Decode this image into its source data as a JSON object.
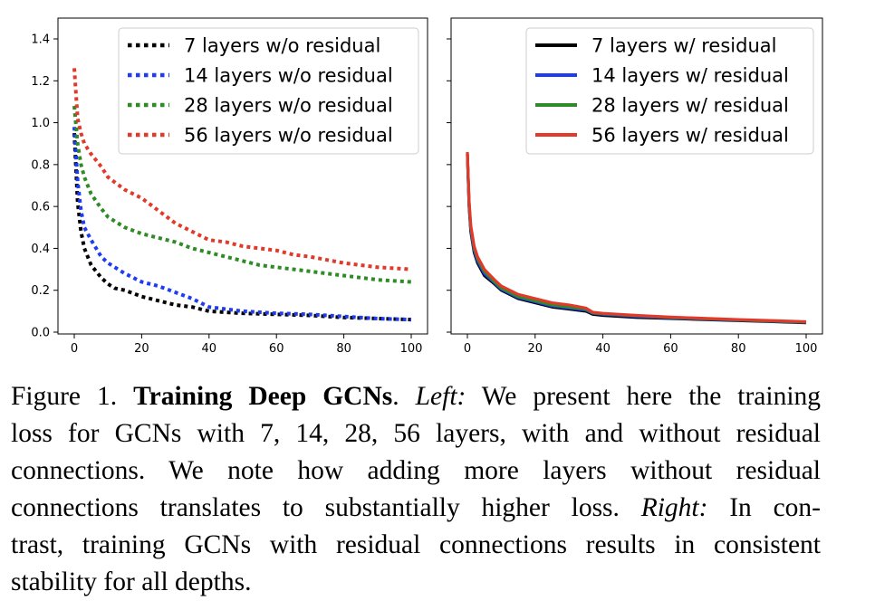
{
  "chart_data": [
    {
      "type": "line",
      "panel": "left",
      "title": "",
      "xlabel": "",
      "ylabel": "",
      "xlim": [
        0,
        100
      ],
      "ylim": [
        0.0,
        1.4
      ],
      "x_ticks": [
        0,
        20,
        40,
        60,
        80,
        100
      ],
      "y_ticks": [
        "0.0",
        "0.2",
        "0.4",
        "0.6",
        "0.8",
        "1.0",
        "1.2",
        "1.4"
      ],
      "legend_position": "top-right",
      "line_style": "dotted",
      "series": [
        {
          "name": "7 layers w/o residual",
          "color": "#000000",
          "x": [
            0,
            1,
            2,
            3,
            5,
            8,
            10,
            12,
            15,
            20,
            25,
            30,
            35,
            40,
            50,
            60,
            70,
            80,
            90,
            100
          ],
          "y": [
            0.95,
            0.62,
            0.48,
            0.4,
            0.32,
            0.26,
            0.23,
            0.21,
            0.2,
            0.17,
            0.15,
            0.13,
            0.12,
            0.1,
            0.09,
            0.085,
            0.08,
            0.07,
            0.065,
            0.06
          ]
        },
        {
          "name": "14 layers w/o residual",
          "color": "#1f3cf0",
          "x": [
            0,
            1,
            2,
            3,
            5,
            8,
            10,
            15,
            20,
            25,
            30,
            35,
            40,
            50,
            60,
            70,
            80,
            90,
            100
          ],
          "y": [
            0.98,
            0.72,
            0.58,
            0.5,
            0.44,
            0.36,
            0.33,
            0.28,
            0.24,
            0.22,
            0.19,
            0.16,
            0.12,
            0.1,
            0.09,
            0.085,
            0.075,
            0.065,
            0.06
          ]
        },
        {
          "name": "28 layers w/o residual",
          "color": "#2e8b25",
          "x": [
            0,
            1,
            2,
            3,
            5,
            8,
            10,
            15,
            20,
            25,
            30,
            35,
            40,
            45,
            50,
            55,
            60,
            70,
            80,
            90,
            100
          ],
          "y": [
            1.08,
            0.9,
            0.8,
            0.74,
            0.66,
            0.59,
            0.55,
            0.5,
            0.47,
            0.45,
            0.43,
            0.4,
            0.38,
            0.36,
            0.34,
            0.32,
            0.31,
            0.29,
            0.27,
            0.25,
            0.24
          ]
        },
        {
          "name": "56 layers w/o residual",
          "color": "#e23a2a",
          "x": [
            0,
            1,
            2,
            3,
            5,
            8,
            10,
            15,
            20,
            25,
            30,
            35,
            40,
            45,
            50,
            55,
            60,
            65,
            70,
            80,
            90,
            100
          ],
          "y": [
            1.26,
            1.02,
            0.95,
            0.9,
            0.85,
            0.79,
            0.74,
            0.68,
            0.64,
            0.58,
            0.52,
            0.48,
            0.44,
            0.43,
            0.41,
            0.4,
            0.39,
            0.37,
            0.36,
            0.33,
            0.31,
            0.3
          ]
        }
      ],
      "legend": [
        "7 layers w/o residual",
        "14 layers w/o residual",
        "28 layers w/o residual",
        "56 layers w/o residual"
      ]
    },
    {
      "type": "line",
      "panel": "right",
      "title": "",
      "xlabel": "",
      "ylabel": "",
      "xlim": [
        0,
        100
      ],
      "ylim": [
        0.0,
        1.4
      ],
      "x_ticks": [
        0,
        20,
        40,
        60,
        80,
        100
      ],
      "y_ticks": [],
      "legend_position": "top-right",
      "line_style": "solid",
      "series": [
        {
          "name": "7 layers w/ residual",
          "color": "#000000",
          "x": [
            0,
            0.5,
            1,
            2,
            3,
            5,
            8,
            10,
            15,
            20,
            25,
            30,
            35,
            37,
            40,
            50,
            60,
            70,
            80,
            90,
            100
          ],
          "y": [
            0.85,
            0.6,
            0.48,
            0.38,
            0.33,
            0.27,
            0.23,
            0.2,
            0.16,
            0.14,
            0.12,
            0.11,
            0.1,
            0.085,
            0.08,
            0.07,
            0.065,
            0.06,
            0.055,
            0.05,
            0.045
          ]
        },
        {
          "name": "14 layers w/ residual",
          "color": "#1f3cf0",
          "x": [
            0,
            0.5,
            1,
            2,
            3,
            5,
            8,
            10,
            15,
            20,
            25,
            30,
            35,
            37,
            40,
            50,
            60,
            70,
            80,
            90,
            100
          ],
          "y": [
            0.85,
            0.61,
            0.49,
            0.39,
            0.34,
            0.28,
            0.235,
            0.205,
            0.165,
            0.145,
            0.125,
            0.115,
            0.105,
            0.09,
            0.085,
            0.075,
            0.068,
            0.062,
            0.057,
            0.052,
            0.047
          ]
        },
        {
          "name": "28 layers w/ residual",
          "color": "#2e8b25",
          "x": [
            0,
            0.5,
            1,
            2,
            3,
            5,
            8,
            10,
            15,
            20,
            25,
            30,
            35,
            37,
            40,
            50,
            60,
            70,
            80,
            90,
            100
          ],
          "y": [
            0.85,
            0.62,
            0.5,
            0.4,
            0.35,
            0.29,
            0.24,
            0.21,
            0.17,
            0.15,
            0.13,
            0.12,
            0.11,
            0.092,
            0.088,
            0.078,
            0.07,
            0.064,
            0.058,
            0.053,
            0.048
          ]
        },
        {
          "name": "56 layers w/ residual",
          "color": "#e23a2a",
          "x": [
            0,
            0.5,
            1,
            2,
            3,
            5,
            8,
            10,
            15,
            20,
            25,
            30,
            35,
            37,
            40,
            50,
            60,
            70,
            80,
            90,
            100
          ],
          "y": [
            0.86,
            0.63,
            0.51,
            0.41,
            0.36,
            0.3,
            0.25,
            0.22,
            0.18,
            0.16,
            0.14,
            0.13,
            0.115,
            0.095,
            0.09,
            0.08,
            0.072,
            0.066,
            0.06,
            0.055,
            0.05
          ]
        }
      ],
      "legend": [
        "7 layers w/ residual",
        "14 layers w/ residual",
        "28 layers w/ residual",
        "56 layers w/ residual"
      ]
    }
  ],
  "caption": {
    "figure_label": "Figure 1.",
    "bold_title": "Training Deep GCNs",
    "line1_a": ". ",
    "left_label": "Left:",
    "line1_b": " We present here the training",
    "line2": "loss for GCNs with 7, 14, 28, 56 layers, with and without residual",
    "line3": "connections.  We note how adding more layers without residual",
    "line4_a": "connections translates to substantially higher loss. ",
    "right_label": "Right:",
    "line4_b": " In con-",
    "line5": "trast, training GCNs with residual connections results in consistent",
    "line6": "stability for all depths."
  }
}
